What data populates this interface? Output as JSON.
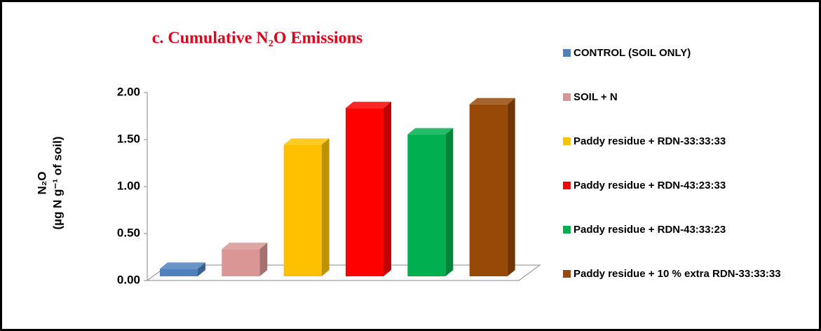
{
  "chart_data": {
    "type": "bar3d",
    "title": "c. Cumulative N₂O Emissions",
    "y_label": [
      "N₂O",
      "(µg N g⁻¹ of soil)"
    ],
    "ylim": [
      0,
      2
    ],
    "yticks": [
      {
        "value": 0,
        "label": "0.00"
      },
      {
        "value": 0.5,
        "label": "0.50"
      },
      {
        "value": 1,
        "label": "1.00"
      },
      {
        "value": 1.5,
        "label": "1.50"
      },
      {
        "value": 2,
        "label": "2.00"
      }
    ],
    "series": [
      {
        "name": "CONTROL (SOIL ONLY)",
        "color": "#4f81bd",
        "values": [
          0.08
        ]
      },
      {
        "name": "SOIL + N",
        "color": "#d99694",
        "values": [
          0.29
        ]
      },
      {
        "name": "Paddy residue + RDN-33:33:33",
        "color": "#ffc000",
        "values": [
          1.4
        ]
      },
      {
        "name": "Paddy residue + RDN-43:23:33",
        "color": "#ff0000",
        "values": [
          1.79
        ]
      },
      {
        "name": "Paddy residue + RDN-43:33:23",
        "color": "#00b050",
        "values": [
          1.51
        ]
      },
      {
        "name": "Paddy residue + 10 % extra RDN-33:33:33",
        "color": "#984807",
        "values": [
          1.83
        ]
      }
    ]
  }
}
